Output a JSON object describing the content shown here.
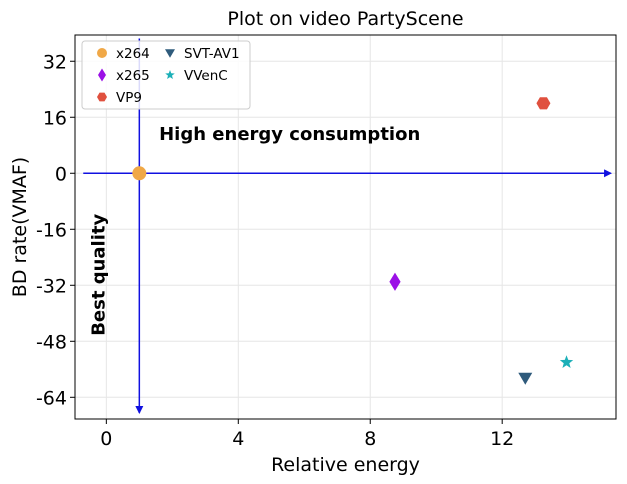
{
  "chart_data": {
    "type": "scatter",
    "title": "Plot on video PartyScene",
    "xlabel": "Relative energy",
    "ylabel": "BD rate(VMAF)",
    "xlim": [
      -0.95,
      15.45
    ],
    "ylim": [
      -70.2,
      39.5
    ],
    "xticks": [
      0,
      4,
      8,
      12
    ],
    "yticks": [
      32,
      16,
      0,
      -16,
      -32,
      -48,
      -64
    ],
    "grid": true,
    "legend": {
      "placement": "top-left",
      "columns": 2
    },
    "series": [
      {
        "name": "x264",
        "marker": "circle",
        "color": "#f0a847",
        "x": [
          1.0
        ],
        "y": [
          0.0
        ]
      },
      {
        "name": "x265",
        "marker": "thin-diamond",
        "color": "#9b10e6",
        "x": [
          8.75
        ],
        "y": [
          -31.0
        ]
      },
      {
        "name": "VP9",
        "marker": "hexagon",
        "color": "#e0503e",
        "x": [
          13.25
        ],
        "y": [
          20.0
        ]
      },
      {
        "name": "SVT-AV1",
        "marker": "triangle-down",
        "color": "#2f5b7c",
        "x": [
          12.7
        ],
        "y": [
          -58.5
        ]
      },
      {
        "name": "VVenC",
        "marker": "star",
        "color": "#1cb0b8",
        "x": [
          13.95
        ],
        "y": [
          -54.0
        ]
      }
    ],
    "annotations": [
      {
        "text": "High energy consumption",
        "x": 1.6,
        "y": 9.5,
        "rotation": 0
      },
      {
        "text": "Best quality",
        "x": -0.05,
        "y": -29,
        "rotation": -90
      }
    ],
    "arrows": [
      {
        "from": [
          -0.7,
          0
        ],
        "to": [
          15.3,
          0
        ],
        "color": "#1010e0"
      },
      {
        "from": [
          1.0,
          38.5
        ],
        "to": [
          1.0,
          -68.5
        ],
        "color": "#1010e0"
      }
    ]
  }
}
